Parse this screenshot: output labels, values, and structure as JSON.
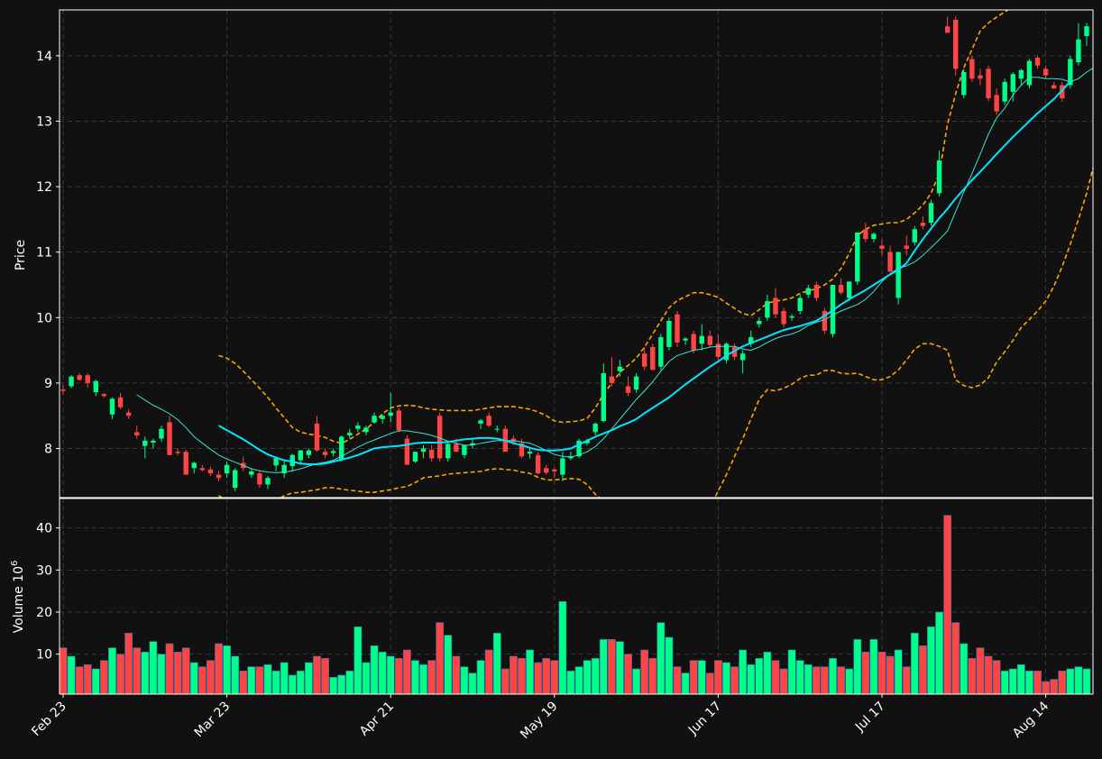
{
  "colors": {
    "background": "#111111",
    "up": "#00ff88",
    "down": "#ff4444",
    "volume_up": "#00ff88",
    "volume_down": "#ff4444",
    "ma_fast": "#40e0d0",
    "ma_slow": "#00e5ff",
    "bands": "#ffa500",
    "grid": "#3a3a3a",
    "axis": "#ffffff",
    "text": "#ffffff"
  },
  "chart_data": {
    "type": "candlestick",
    "price_panel": {
      "ylabel": "Price",
      "ylim": [
        7.25,
        14.7
      ],
      "yticks": [
        8,
        9,
        10,
        11,
        12,
        13,
        14
      ],
      "grid": true
    },
    "volume_panel": {
      "ylabel": "Volume  10",
      "ylabel_exponent": "6",
      "ylim": [
        0.5,
        47
      ],
      "yticks": [
        10,
        20,
        30,
        40
      ],
      "grid": true
    },
    "xticks": [
      {
        "label": "Feb 23",
        "index": 0
      },
      {
        "label": "Mar 23",
        "index": 20
      },
      {
        "label": "Apr 21",
        "index": 40
      },
      {
        "label": "May 19",
        "index": 60
      },
      {
        "label": "Jun 17",
        "index": 80
      },
      {
        "label": "Jul 17",
        "index": 100
      },
      {
        "label": "Aug 14",
        "index": 120
      }
    ],
    "candles": [
      [
        8.9,
        8.97,
        8.83,
        8.88
      ],
      [
        8.95,
        9.12,
        8.92,
        9.1
      ],
      [
        9.12,
        9.15,
        9.03,
        9.05
      ],
      [
        9.12,
        9.15,
        8.93,
        9.0
      ],
      [
        8.86,
        9.05,
        8.8,
        9.03
      ],
      [
        8.83,
        8.85,
        8.78,
        8.8
      ],
      [
        8.52,
        8.78,
        8.45,
        8.76
      ],
      [
        8.78,
        8.85,
        8.6,
        8.63
      ],
      [
        8.55,
        8.6,
        8.45,
        8.5
      ],
      [
        8.25,
        8.35,
        8.15,
        8.2
      ],
      [
        8.04,
        8.18,
        7.85,
        8.12
      ],
      [
        8.09,
        8.15,
        8.0,
        8.12
      ],
      [
        8.15,
        8.35,
        8.1,
        8.3
      ],
      [
        8.4,
        8.5,
        7.9,
        7.9
      ],
      [
        7.95,
        8.0,
        7.9,
        7.93
      ],
      [
        7.95,
        7.98,
        7.6,
        7.6
      ],
      [
        7.7,
        7.8,
        7.62,
        7.78
      ],
      [
        7.7,
        7.75,
        7.65,
        7.67
      ],
      [
        7.68,
        7.72,
        7.58,
        7.62
      ],
      [
        7.6,
        7.66,
        7.5,
        7.55
      ],
      [
        7.62,
        7.8,
        7.55,
        7.75
      ],
      [
        7.4,
        7.7,
        7.35,
        7.67
      ],
      [
        7.78,
        7.88,
        7.65,
        7.7
      ],
      [
        7.6,
        7.7,
        7.55,
        7.65
      ],
      [
        7.62,
        7.66,
        7.4,
        7.45
      ],
      [
        7.45,
        7.58,
        7.38,
        7.55
      ],
      [
        7.74,
        7.88,
        7.65,
        7.85
      ],
      [
        7.62,
        7.8,
        7.55,
        7.75
      ],
      [
        7.73,
        7.92,
        7.65,
        7.9
      ],
      [
        7.82,
        7.98,
        7.75,
        7.97
      ],
      [
        7.9,
        8.0,
        7.85,
        7.97
      ],
      [
        8.38,
        8.5,
        7.95,
        7.97
      ],
      [
        7.95,
        8.0,
        7.85,
        7.9
      ],
      [
        7.93,
        8.0,
        7.88,
        7.96
      ],
      [
        7.82,
        8.2,
        7.8,
        8.18
      ],
      [
        8.2,
        8.3,
        8.15,
        8.24
      ],
      [
        8.3,
        8.4,
        8.25,
        8.35
      ],
      [
        8.25,
        8.35,
        8.2,
        8.32
      ],
      [
        8.4,
        8.55,
        8.38,
        8.5
      ],
      [
        8.45,
        8.52,
        8.38,
        8.5
      ],
      [
        8.5,
        8.85,
        8.4,
        8.55
      ],
      [
        8.58,
        8.62,
        8.25,
        8.28
      ],
      [
        8.15,
        8.2,
        7.75,
        7.75
      ],
      [
        7.8,
        7.95,
        7.78,
        7.95
      ],
      [
        7.95,
        8.05,
        7.85,
        8.0
      ],
      [
        7.98,
        8.05,
        7.8,
        7.85
      ],
      [
        8.5,
        8.55,
        7.8,
        7.85
      ],
      [
        7.85,
        8.1,
        7.8,
        8.07
      ],
      [
        8.07,
        8.15,
        7.95,
        7.95
      ],
      [
        7.9,
        8.05,
        7.85,
        8.05
      ],
      [
        8.05,
        8.15,
        8.0,
        8.08
      ],
      [
        8.38,
        8.45,
        8.3,
        8.43
      ],
      [
        8.5,
        8.55,
        8.32,
        8.35
      ],
      [
        8.3,
        8.35,
        8.25,
        8.3
      ],
      [
        8.3,
        8.35,
        7.95,
        7.95
      ],
      [
        8.15,
        8.2,
        8.05,
        8.1
      ],
      [
        8.08,
        8.15,
        7.85,
        7.88
      ],
      [
        7.92,
        8.0,
        7.85,
        7.95
      ],
      [
        7.9,
        7.95,
        7.6,
        7.62
      ],
      [
        7.7,
        7.75,
        7.6,
        7.63
      ],
      [
        7.68,
        7.7,
        7.55,
        7.65
      ],
      [
        7.6,
        7.95,
        7.5,
        7.85
      ],
      [
        7.85,
        7.95,
        7.82,
        7.88
      ],
      [
        7.88,
        8.15,
        7.85,
        8.12
      ],
      [
        8.08,
        8.15,
        8.05,
        8.12
      ],
      [
        8.25,
        8.4,
        8.2,
        8.38
      ],
      [
        8.42,
        9.3,
        8.4,
        9.15
      ],
      [
        9.1,
        9.4,
        8.95,
        9.0
      ],
      [
        9.18,
        9.35,
        9.1,
        9.25
      ],
      [
        8.95,
        9.1,
        8.8,
        8.85
      ],
      [
        8.9,
        9.15,
        8.85,
        9.1
      ],
      [
        9.45,
        9.55,
        9.2,
        9.25
      ],
      [
        9.55,
        9.6,
        9.2,
        9.2
      ],
      [
        9.25,
        9.75,
        9.2,
        9.7
      ],
      [
        9.55,
        10.0,
        9.5,
        9.95
      ],
      [
        10.05,
        10.1,
        9.55,
        9.62
      ],
      [
        9.65,
        9.7,
        9.58,
        9.68
      ],
      [
        9.75,
        9.8,
        9.45,
        9.5
      ],
      [
        9.6,
        9.9,
        9.5,
        9.72
      ],
      [
        9.72,
        9.8,
        9.55,
        9.58
      ],
      [
        9.6,
        9.75,
        9.35,
        9.4
      ],
      [
        9.35,
        9.62,
        9.3,
        9.6
      ],
      [
        9.55,
        9.6,
        9.35,
        9.4
      ],
      [
        9.35,
        9.5,
        9.15,
        9.45
      ],
      [
        9.6,
        9.8,
        9.55,
        9.7
      ],
      [
        9.9,
        10.0,
        9.85,
        9.95
      ],
      [
        10.0,
        10.35,
        9.95,
        10.25
      ],
      [
        10.3,
        10.45,
        10.0,
        10.05
      ],
      [
        10.1,
        10.15,
        9.85,
        9.9
      ],
      [
        10.0,
        10.05,
        9.95,
        10.02
      ],
      [
        10.1,
        10.35,
        10.05,
        10.3
      ],
      [
        10.35,
        10.5,
        10.3,
        10.45
      ],
      [
        10.5,
        10.55,
        10.25,
        10.3
      ],
      [
        10.1,
        10.15,
        9.75,
        9.8
      ],
      [
        9.75,
        10.5,
        9.7,
        10.5
      ],
      [
        10.5,
        10.6,
        10.35,
        10.38
      ],
      [
        10.3,
        10.55,
        10.25,
        10.55
      ],
      [
        10.55,
        11.3,
        10.5,
        11.3
      ],
      [
        11.35,
        11.45,
        11.15,
        11.2
      ],
      [
        11.2,
        11.3,
        11.15,
        11.28
      ],
      [
        11.1,
        11.2,
        10.95,
        11.05
      ],
      [
        11.0,
        11.1,
        10.7,
        10.7
      ],
      [
        10.3,
        11.0,
        10.2,
        11.0
      ],
      [
        11.1,
        11.25,
        10.95,
        11.05
      ],
      [
        11.15,
        11.4,
        11.1,
        11.35
      ],
      [
        11.45,
        11.55,
        11.35,
        11.4
      ],
      [
        11.45,
        11.8,
        11.4,
        11.75
      ],
      [
        11.9,
        12.55,
        11.85,
        12.4
      ],
      [
        14.45,
        14.6,
        14.35,
        14.35
      ],
      [
        14.55,
        14.6,
        13.7,
        13.8
      ],
      [
        13.4,
        13.8,
        13.35,
        13.75
      ],
      [
        13.95,
        14.0,
        13.6,
        13.65
      ],
      [
        13.7,
        13.8,
        13.55,
        13.65
      ],
      [
        13.8,
        13.85,
        13.3,
        13.35
      ],
      [
        13.4,
        13.5,
        13.1,
        13.15
      ],
      [
        13.3,
        13.65,
        13.25,
        13.6
      ],
      [
        13.45,
        13.75,
        13.3,
        13.72
      ],
      [
        13.65,
        13.8,
        13.55,
        13.78
      ],
      [
        13.55,
        13.95,
        13.5,
        13.92
      ],
      [
        13.97,
        14.0,
        13.8,
        13.85
      ],
      [
        13.8,
        13.85,
        13.65,
        13.7
      ],
      [
        13.55,
        13.6,
        13.5,
        13.5
      ],
      [
        13.55,
        13.6,
        13.3,
        13.35
      ],
      [
        13.55,
        14.0,
        13.5,
        13.95
      ],
      [
        13.9,
        14.5,
        13.85,
        14.25
      ],
      [
        14.3,
        14.5,
        14.15,
        14.45
      ]
    ],
    "volume": [
      11.5,
      9.5,
      7,
      7.5,
      6.5,
      8.5,
      11.5,
      10,
      15,
      11.5,
      10.5,
      13,
      10,
      12.5,
      10.5,
      11.5,
      8,
      7,
      8.5,
      12.5,
      12,
      9.5,
      6,
      7,
      7,
      7.5,
      6,
      8,
      5,
      6,
      8,
      9.5,
      9,
      4.5,
      5,
      6,
      16.5,
      8,
      12,
      10.5,
      9.5,
      9,
      11,
      8.5,
      7.5,
      8.5,
      17.5,
      14.5,
      9.5,
      7,
      5.5,
      8.5,
      11,
      15,
      6.5,
      9.5,
      9,
      11,
      8,
      9,
      8.5,
      22.5,
      6,
      7,
      8.5,
      9,
      13.5,
      13.5,
      13,
      10,
      6.5,
      11,
      9,
      17.5,
      14,
      7,
      5.5,
      8.5,
      8.5,
      5.5,
      8.5,
      8,
      7,
      11,
      7.5,
      9,
      10.5,
      8.5,
      6.5,
      11,
      8.5,
      7.5,
      7,
      7,
      9,
      7,
      6.5,
      13.5,
      10.5,
      13.5,
      10.5,
      9.5,
      11,
      7,
      15,
      12,
      16.5,
      20,
      43,
      17.5,
      12.5,
      9,
      11.5,
      9.5,
      8.5,
      6,
      6.5,
      7.5,
      6,
      6,
      3.5,
      4,
      6,
      6.5,
      7,
      6.5
    ],
    "ma_fast": [
      null,
      null,
      null,
      null,
      null,
      null,
      null,
      null,
      null,
      8.82,
      8.74,
      8.66,
      8.6,
      8.53,
      8.44,
      8.32,
      8.18,
      8.08,
      7.99,
      7.9,
      7.84,
      7.79,
      7.74,
      7.69,
      7.66,
      7.64,
      7.63,
      7.64,
      7.66,
      7.69,
      7.73,
      7.77,
      7.79,
      7.82,
      7.88,
      7.95,
      8.02,
      8.08,
      8.13,
      8.18,
      8.23,
      8.27,
      8.27,
      8.25,
      8.23,
      8.2,
      8.16,
      8.11,
      8.08,
      8.05,
      8.05,
      8.08,
      8.1,
      8.12,
      8.12,
      8.12,
      8.1,
      8.08,
      8.03,
      7.97,
      7.91,
      7.88,
      7.87,
      7.9,
      7.95,
      8.03,
      8.15,
      8.3,
      8.45,
      8.6,
      8.75,
      8.88,
      9.02,
      9.18,
      9.33,
      9.42,
      9.46,
      9.5,
      9.52,
      9.55,
      9.56,
      9.56,
      9.56,
      9.52,
      9.5,
      9.55,
      9.62,
      9.68,
      9.72,
      9.75,
      9.8,
      9.88,
      9.93,
      9.97,
      10.04,
      10.1,
      10.15,
      10.2,
      10.28,
      10.4,
      10.55,
      10.67,
      10.75,
      10.79,
      10.85,
      10.95,
      11.07,
      11.19,
      11.32,
      11.62,
      11.92,
      12.2,
      12.5,
      12.8,
      13.05,
      13.2,
      13.4,
      13.55,
      13.67,
      13.67,
      13.65,
      13.65,
      13.64,
      13.6,
      13.65,
      13.75,
      13.83
    ],
    "ma_slow": [
      null,
      null,
      null,
      null,
      null,
      null,
      null,
      null,
      null,
      null,
      null,
      null,
      null,
      null,
      null,
      null,
      null,
      null,
      null,
      8.35,
      8.28,
      8.21,
      8.14,
      8.06,
      7.98,
      7.91,
      7.86,
      7.82,
      7.8,
      7.77,
      7.76,
      7.76,
      7.77,
      7.8,
      7.83,
      7.86,
      7.9,
      7.95,
      8.0,
      8.02,
      8.03,
      8.04,
      8.06,
      8.08,
      8.09,
      8.09,
      8.09,
      8.1,
      8.12,
      8.14,
      8.15,
      8.16,
      8.16,
      8.15,
      8.12,
      8.08,
      8.05,
      8.01,
      7.98,
      7.97,
      7.97,
      7.98,
      8.0,
      8.06,
      8.12,
      8.18,
      8.23,
      8.28,
      8.34,
      8.39,
      8.45,
      8.54,
      8.62,
      8.7,
      8.78,
      8.88,
      8.98,
      9.07,
      9.16,
      9.25,
      9.33,
      9.42,
      9.49,
      9.56,
      9.61,
      9.66,
      9.71,
      9.76,
      9.81,
      9.84,
      9.87,
      9.91,
      9.95,
      10.03,
      10.11,
      10.2,
      10.28,
      10.35,
      10.42,
      10.5,
      10.58,
      10.66,
      10.73,
      10.83,
      11.02,
      11.2,
      11.36,
      11.52,
      11.66,
      11.82,
      11.96,
      12.1,
      12.23,
      12.36,
      12.5,
      12.63,
      12.76,
      12.88,
      13.0,
      13.12,
      13.23,
      13.34,
      13.47,
      13.61
    ],
    "band_upper": [
      null,
      null,
      null,
      null,
      null,
      null,
      null,
      null,
      null,
      null,
      null,
      null,
      null,
      null,
      null,
      null,
      null,
      null,
      null,
      9.42,
      9.38,
      9.3,
      9.18,
      9.05,
      8.92,
      8.78,
      8.62,
      8.47,
      8.32,
      8.25,
      8.22,
      8.2,
      8.17,
      8.11,
      8.08,
      8.14,
      8.22,
      8.3,
      8.4,
      8.53,
      8.62,
      8.65,
      8.66,
      8.65,
      8.62,
      8.6,
      8.59,
      8.58,
      8.58,
      8.58,
      8.58,
      8.6,
      8.62,
      8.64,
      8.64,
      8.64,
      8.62,
      8.6,
      8.56,
      8.5,
      8.42,
      8.4,
      8.41,
      8.42,
      8.46,
      8.62,
      8.83,
      9.0,
      9.16,
      9.27,
      9.38,
      9.55,
      9.75,
      9.95,
      10.15,
      10.26,
      10.32,
      10.38,
      10.38,
      10.35,
      10.31,
      10.22,
      10.14,
      10.06,
      10.03,
      10.12,
      10.22,
      10.25,
      10.27,
      10.3,
      10.37,
      10.41,
      10.44,
      10.5,
      10.59,
      10.75,
      10.98,
      11.25,
      11.35,
      11.41,
      11.43,
      11.45,
      11.45,
      11.5,
      11.6,
      11.72,
      11.9,
      12.2,
      12.95,
      13.42,
      13.82,
      14.1,
      14.38,
      14.5,
      14.59,
      14.67,
      14.75,
      14.88
    ],
    "band_lower": [
      null,
      null,
      null,
      null,
      null,
      null,
      null,
      null,
      null,
      null,
      null,
      null,
      null,
      null,
      null,
      null,
      null,
      null,
      null,
      7.28,
      7.2,
      7.15,
      7.1,
      7.05,
      7.0,
      7.05,
      7.2,
      7.28,
      7.32,
      7.33,
      7.35,
      7.37,
      7.4,
      7.4,
      7.38,
      7.36,
      7.35,
      7.33,
      7.33,
      7.35,
      7.37,
      7.4,
      7.42,
      7.48,
      7.55,
      7.57,
      7.58,
      7.61,
      7.62,
      7.63,
      7.64,
      7.65,
      7.68,
      7.69,
      7.68,
      7.67,
      7.64,
      7.62,
      7.56,
      7.52,
      7.52,
      7.53,
      7.54,
      7.53,
      7.45,
      7.3,
      7.2,
      7.15,
      7.15,
      7.1,
      7.0,
      6.95,
      6.8,
      6.7,
      6.65,
      6.6,
      6.68,
      6.8,
      6.95,
      7.1,
      7.35,
      7.6,
      7.88,
      8.15,
      8.45,
      8.75,
      8.9,
      8.88,
      8.92,
      8.98,
      9.07,
      9.12,
      9.12,
      9.19,
      9.19,
      9.15,
      9.14,
      9.15,
      9.1,
      9.05,
      9.05,
      9.1,
      9.2,
      9.35,
      9.52,
      9.6,
      9.6,
      9.56,
      9.5,
      9.05,
      8.96,
      8.93,
      8.97,
      9.08,
      9.32,
      9.48,
      9.65,
      9.85,
      9.97,
      10.1,
      10.25,
      10.48,
      10.78,
      11.12,
      11.5,
      11.9,
      12.4
    ]
  }
}
